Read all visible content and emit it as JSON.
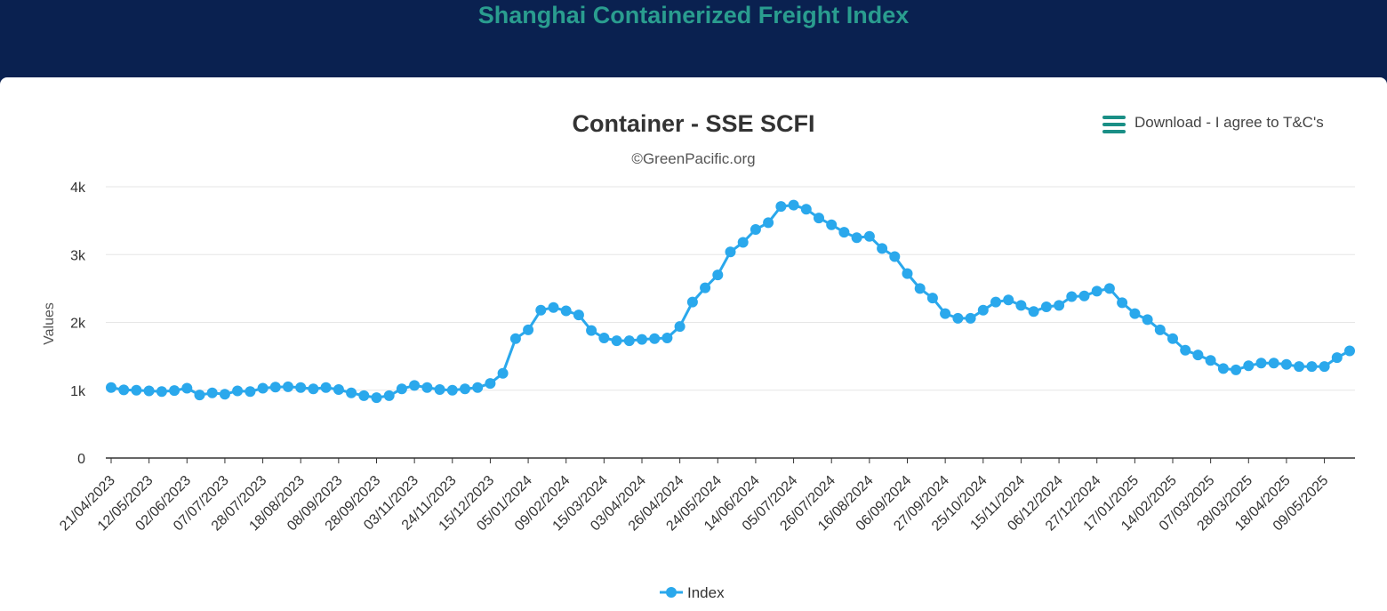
{
  "page": {
    "title": "Shanghai Containerized Freight Index"
  },
  "export_menu": {
    "label": "Download - I agree to T&C's",
    "icon": "hamburger-menu-icon"
  },
  "colors": {
    "header_bg": "#0a2150",
    "title": "#2a9d8f",
    "series": "#2aa8ec",
    "menu_icon": "#1a8f86"
  },
  "chart_data": {
    "type": "line",
    "title": "Container - SSE SCFI",
    "subtitle": "©GreenPacific.org",
    "ylabel": "Values",
    "xlabel": "",
    "ylim": [
      0,
      4000
    ],
    "yticks": [
      0,
      1000,
      2000,
      3000,
      4000
    ],
    "ytick_labels": [
      "0",
      "1k",
      "2k",
      "3k",
      "4k"
    ],
    "x_tick_labels": [
      "21/04/2023",
      "12/05/2023",
      "02/06/2023",
      "07/07/2023",
      "28/07/2023",
      "18/08/2023",
      "08/09/2023",
      "28/09/2023",
      "03/11/2023",
      "24/11/2023",
      "15/12/2023",
      "05/01/2024",
      "09/02/2024",
      "15/03/2024",
      "03/04/2024",
      "26/04/2024",
      "24/05/2024",
      "14/06/2024",
      "05/07/2024",
      "26/07/2024",
      "16/08/2024",
      "06/09/2024",
      "27/09/2024",
      "25/10/2024",
      "15/11/2024",
      "06/12/2024",
      "27/12/2024",
      "17/01/2025",
      "14/02/2025",
      "07/03/2025",
      "28/03/2025",
      "18/04/2025",
      "09/05/2025"
    ],
    "x_tick_every": 3,
    "legend": "bottom-center",
    "grid": true,
    "series": [
      {
        "name": "Index",
        "color": "#2aa8ec",
        "values": [
          1040,
          1005,
          1000,
          990,
          980,
          995,
          1030,
          930,
          960,
          940,
          990,
          980,
          1030,
          1045,
          1050,
          1040,
          1020,
          1040,
          1010,
          960,
          920,
          890,
          920,
          1020,
          1070,
          1040,
          1010,
          1000,
          1020,
          1040,
          1100,
          1250,
          1760,
          1890,
          2180,
          2220,
          2170,
          2110,
          1880,
          1770,
          1730,
          1730,
          1750,
          1760,
          1770,
          1940,
          2300,
          2510,
          2700,
          3040,
          3180,
          3370,
          3470,
          3710,
          3730,
          3670,
          3540,
          3440,
          3330,
          3250,
          3270,
          3090,
          2970,
          2720,
          2500,
          2360,
          2130,
          2060,
          2060,
          2180,
          2300,
          2330,
          2250,
          2160,
          2230,
          2250,
          2380,
          2390,
          2460,
          2500,
          2290,
          2130,
          2040,
          1890,
          1760,
          1590,
          1520,
          1440,
          1320,
          1300,
          1360,
          1400,
          1400,
          1380,
          1350,
          1350,
          1350,
          1480,
          1580
        ]
      }
    ]
  }
}
